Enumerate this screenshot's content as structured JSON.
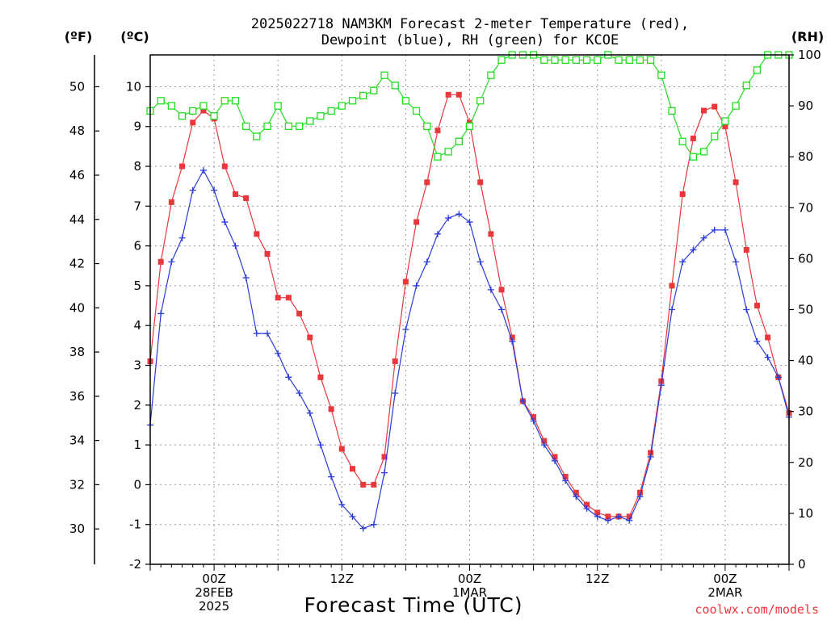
{
  "chart_data": {
    "type": "line",
    "title_line1": "2025022718 NAM3KM Forecast 2-meter Temperature (red),",
    "title_line2": "Dewpoint (blue), RH (green) for KCOE",
    "xlabel": "Forecast Time (UTC)",
    "unit_f": "(ºF)",
    "unit_c": "(ºC)",
    "unit_rh": "(RH)",
    "watermark": "coolwx.com/models",
    "x_ticks": [
      {
        "hour": 6,
        "lines": [
          "00Z",
          "28FEB",
          "2025"
        ]
      },
      {
        "hour": 18,
        "lines": [
          "12Z"
        ]
      },
      {
        "hour": 30,
        "lines": [
          "00Z",
          "1MAR"
        ]
      },
      {
        "hour": 42,
        "lines": [
          "12Z"
        ]
      },
      {
        "hour": 54,
        "lines": [
          "00Z",
          "2MAR"
        ]
      }
    ],
    "xlim_hours": [
      0,
      60
    ],
    "ylim_c": [
      -2,
      10.8
    ],
    "yticks_c": [
      -2,
      -1,
      0,
      1,
      2,
      3,
      4,
      5,
      6,
      7,
      8,
      9,
      10
    ],
    "yticks_f": [
      30,
      32,
      34,
      36,
      38,
      40,
      42,
      44,
      46,
      48,
      50
    ],
    "ylim_rh": [
      0,
      100
    ],
    "yticks_rh": [
      0,
      10,
      20,
      30,
      40,
      50,
      60,
      70,
      80,
      90,
      100
    ],
    "grid": true,
    "series": [
      {
        "name": "Temperature",
        "color": "#e8383c",
        "marker": "filled-square",
        "axis": "c",
        "values": [
          3.1,
          5.6,
          7.1,
          8.0,
          9.1,
          9.4,
          9.2,
          8.0,
          7.3,
          7.2,
          6.3,
          5.8,
          4.7,
          4.7,
          4.3,
          3.7,
          2.7,
          1.9,
          0.9,
          0.4,
          0.0,
          0.0,
          0.7,
          3.1,
          5.1,
          6.6,
          7.6,
          8.9,
          9.8,
          9.8,
          9.1,
          7.6,
          6.3,
          4.9,
          3.7,
          2.1,
          1.7,
          1.1,
          0.7,
          0.2,
          -0.2,
          -0.5,
          -0.7,
          -0.8,
          -0.8,
          -0.8,
          -0.2,
          0.8,
          2.6,
          5.0,
          7.3,
          8.7,
          9.4,
          9.5,
          9.0,
          7.6,
          5.9,
          4.5,
          3.7,
          2.7,
          1.8
        ]
      },
      {
        "name": "Dewpoint",
        "color": "#2a3bd8",
        "marker": "plus",
        "axis": "c",
        "values": [
          1.5,
          4.3,
          5.6,
          6.2,
          7.4,
          7.9,
          7.4,
          6.6,
          6.0,
          5.2,
          3.8,
          3.8,
          3.3,
          2.7,
          2.3,
          1.8,
          1.0,
          0.2,
          -0.5,
          -0.8,
          -1.1,
          -1.0,
          0.3,
          2.3,
          3.9,
          5.0,
          5.6,
          6.3,
          6.7,
          6.8,
          6.6,
          5.6,
          4.9,
          4.4,
          3.6,
          2.1,
          1.6,
          1.0,
          0.6,
          0.1,
          -0.3,
          -0.6,
          -0.8,
          -0.9,
          -0.8,
          -0.9,
          -0.3,
          0.7,
          2.5,
          4.4,
          5.6,
          5.9,
          6.2,
          6.4,
          6.4,
          5.6,
          4.4,
          3.6,
          3.2,
          2.7,
          1.7
        ]
      },
      {
        "name": "RH",
        "color": "#22dd22",
        "marker": "open-square",
        "axis": "rh",
        "values": [
          89,
          91,
          90,
          88,
          89,
          90,
          88,
          91,
          91,
          86,
          84,
          86,
          90,
          86,
          86,
          87,
          88,
          89,
          90,
          91,
          92,
          93,
          96,
          94,
          91,
          89,
          86,
          80,
          81,
          83,
          86,
          91,
          96,
          99,
          100,
          100,
          100,
          99,
          99,
          99,
          99,
          99,
          99,
          100,
          99,
          99,
          99,
          99,
          96,
          89,
          83,
          80,
          81,
          84,
          87,
          90,
          94,
          97,
          100,
          100,
          100
        ]
      }
    ]
  }
}
